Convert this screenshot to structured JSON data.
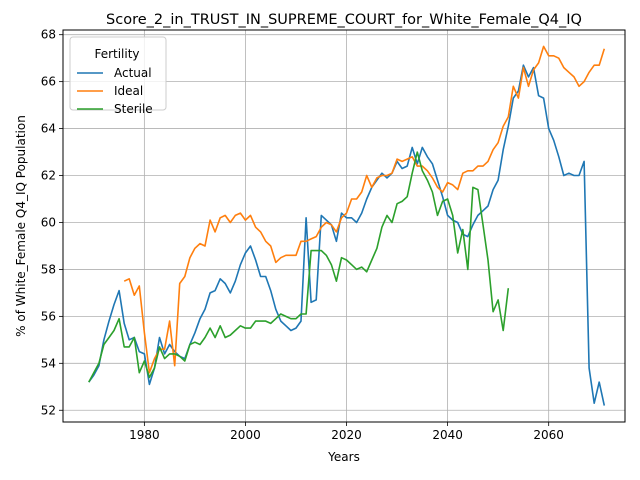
{
  "chart_data": {
    "type": "line",
    "title": "Score_2_in_TRUST_IN_SUPREME_COURT_for_White_Female_Q4_IQ",
    "xlabel": "Years",
    "ylabel": "% of White_Female Q4_IQ Population",
    "xlim": [
      1963.9,
      2075.1
    ],
    "ylim": [
      51.5,
      68.2
    ],
    "xticks": [
      1980,
      2000,
      2020,
      2040,
      2060
    ],
    "yticks": [
      52,
      54,
      56,
      58,
      60,
      62,
      64,
      66,
      68
    ],
    "grid": true,
    "legend": {
      "title": "Fertility",
      "placement": "top-left"
    },
    "series": [
      {
        "name": "Actual",
        "color": "#1f77b4",
        "points": [
          [
            1969,
            53.2
          ],
          [
            1970,
            53.5
          ],
          [
            1971,
            53.9
          ],
          [
            1972,
            55.0
          ],
          [
            1973,
            55.8
          ],
          [
            1974,
            56.5
          ],
          [
            1975,
            57.1
          ],
          [
            1976,
            55.7
          ],
          [
            1977,
            55.0
          ],
          [
            1978,
            55.1
          ],
          [
            1979,
            54.5
          ],
          [
            1980,
            54.4
          ],
          [
            1981,
            53.1
          ],
          [
            1982,
            53.8
          ],
          [
            1983,
            55.1
          ],
          [
            1984,
            54.4
          ],
          [
            1985,
            54.8
          ],
          [
            1986,
            54.5
          ],
          [
            1987,
            54.3
          ],
          [
            1988,
            54.2
          ],
          [
            1989,
            54.8
          ],
          [
            1990,
            55.3
          ],
          [
            1991,
            55.9
          ],
          [
            1992,
            56.3
          ],
          [
            1993,
            57.0
          ],
          [
            1994,
            57.1
          ],
          [
            1995,
            57.6
          ],
          [
            1996,
            57.4
          ],
          [
            1997,
            57.0
          ],
          [
            1998,
            57.5
          ],
          [
            1999,
            58.2
          ],
          [
            2000,
            58.7
          ],
          [
            2001,
            59.0
          ],
          [
            2002,
            58.4
          ],
          [
            2003,
            57.7
          ],
          [
            2004,
            57.7
          ],
          [
            2005,
            57.1
          ],
          [
            2006,
            56.3
          ],
          [
            2007,
            55.8
          ],
          [
            2008,
            55.6
          ],
          [
            2009,
            55.4
          ],
          [
            2010,
            55.5
          ],
          [
            2011,
            55.8
          ],
          [
            2012,
            60.2
          ],
          [
            2013,
            56.6
          ],
          [
            2014,
            56.7
          ],
          [
            2015,
            60.3
          ],
          [
            2016,
            60.1
          ],
          [
            2017,
            59.9
          ],
          [
            2018,
            59.2
          ],
          [
            2019,
            60.4
          ],
          [
            2020,
            60.2
          ],
          [
            2021,
            60.2
          ],
          [
            2022,
            60.0
          ],
          [
            2023,
            60.4
          ],
          [
            2024,
            61.0
          ],
          [
            2025,
            61.5
          ],
          [
            2026,
            61.8
          ],
          [
            2027,
            62.1
          ],
          [
            2028,
            61.9
          ],
          [
            2029,
            62.1
          ],
          [
            2030,
            62.6
          ],
          [
            2031,
            62.3
          ],
          [
            2032,
            62.4
          ],
          [
            2033,
            63.2
          ],
          [
            2034,
            62.5
          ],
          [
            2035,
            63.2
          ],
          [
            2036,
            62.8
          ],
          [
            2037,
            62.5
          ],
          [
            2038,
            61.8
          ],
          [
            2039,
            61.1
          ],
          [
            2040,
            60.3
          ],
          [
            2041,
            60.1
          ],
          [
            2042,
            60.0
          ],
          [
            2043,
            59.5
          ],
          [
            2044,
            59.4
          ],
          [
            2045,
            59.9
          ],
          [
            2046,
            60.3
          ],
          [
            2047,
            60.5
          ],
          [
            2048,
            60.7
          ],
          [
            2049,
            61.4
          ],
          [
            2050,
            61.8
          ],
          [
            2051,
            63.1
          ],
          [
            2052,
            64.1
          ],
          [
            2053,
            65.3
          ],
          [
            2054,
            65.6
          ],
          [
            2055,
            66.7
          ],
          [
            2056,
            66.2
          ],
          [
            2057,
            66.6
          ],
          [
            2058,
            65.4
          ],
          [
            2059,
            65.3
          ],
          [
            2060,
            64.0
          ],
          [
            2061,
            63.5
          ],
          [
            2062,
            62.8
          ],
          [
            2063,
            62.0
          ],
          [
            2064,
            62.1
          ],
          [
            2065,
            62.0
          ],
          [
            2066,
            62.0
          ],
          [
            2067,
            62.6
          ],
          [
            2068,
            53.8
          ],
          [
            2069,
            52.3
          ],
          [
            2070,
            53.2
          ],
          [
            2071,
            52.2
          ]
        ]
      },
      {
        "name": "Ideal",
        "color": "#ff7f0e",
        "points": [
          [
            1976,
            57.5
          ],
          [
            1977,
            57.6
          ],
          [
            1978,
            56.9
          ],
          [
            1979,
            57.3
          ],
          [
            1980,
            55.3
          ],
          [
            1981,
            53.6
          ],
          [
            1982,
            54.2
          ],
          [
            1983,
            54.6
          ],
          [
            1984,
            54.6
          ],
          [
            1985,
            55.8
          ],
          [
            1986,
            53.9
          ],
          [
            1987,
            57.4
          ],
          [
            1988,
            57.7
          ],
          [
            1989,
            58.5
          ],
          [
            1990,
            58.9
          ],
          [
            1991,
            59.1
          ],
          [
            1992,
            59.0
          ],
          [
            1993,
            60.1
          ],
          [
            1994,
            59.6
          ],
          [
            1995,
            60.2
          ],
          [
            1996,
            60.3
          ],
          [
            1997,
            60.0
          ],
          [
            1998,
            60.3
          ],
          [
            1999,
            60.4
          ],
          [
            2000,
            60.1
          ],
          [
            2001,
            60.3
          ],
          [
            2002,
            59.8
          ],
          [
            2003,
            59.6
          ],
          [
            2004,
            59.2
          ],
          [
            2005,
            59.0
          ],
          [
            2006,
            58.3
          ],
          [
            2007,
            58.5
          ],
          [
            2008,
            58.6
          ],
          [
            2009,
            58.6
          ],
          [
            2010,
            58.6
          ],
          [
            2011,
            59.2
          ],
          [
            2012,
            59.2
          ],
          [
            2013,
            59.3
          ],
          [
            2014,
            59.4
          ],
          [
            2015,
            59.8
          ],
          [
            2016,
            60.0
          ],
          [
            2017,
            59.9
          ],
          [
            2018,
            59.6
          ],
          [
            2019,
            60.2
          ],
          [
            2020,
            60.4
          ],
          [
            2021,
            61.0
          ],
          [
            2022,
            61.0
          ],
          [
            2023,
            61.3
          ],
          [
            2024,
            62.0
          ],
          [
            2025,
            61.5
          ],
          [
            2026,
            61.9
          ],
          [
            2027,
            62.0
          ],
          [
            2028,
            62.0
          ],
          [
            2029,
            62.1
          ],
          [
            2030,
            62.7
          ],
          [
            2031,
            62.6
          ],
          [
            2032,
            62.7
          ],
          [
            2033,
            62.8
          ],
          [
            2034,
            62.4
          ],
          [
            2035,
            62.4
          ],
          [
            2036,
            62.2
          ],
          [
            2037,
            61.9
          ],
          [
            2038,
            61.5
          ],
          [
            2039,
            61.3
          ],
          [
            2040,
            61.7
          ],
          [
            2041,
            61.6
          ],
          [
            2042,
            61.4
          ],
          [
            2043,
            62.1
          ],
          [
            2044,
            62.2
          ],
          [
            2045,
            62.2
          ],
          [
            2046,
            62.4
          ],
          [
            2047,
            62.4
          ],
          [
            2048,
            62.6
          ],
          [
            2049,
            63.1
          ],
          [
            2050,
            63.4
          ],
          [
            2051,
            64.1
          ],
          [
            2052,
            64.5
          ],
          [
            2053,
            65.8
          ],
          [
            2054,
            65.3
          ],
          [
            2055,
            66.6
          ],
          [
            2056,
            65.8
          ],
          [
            2057,
            66.5
          ],
          [
            2058,
            66.8
          ],
          [
            2059,
            67.5
          ],
          [
            2060,
            67.1
          ],
          [
            2061,
            67.1
          ],
          [
            2062,
            67.0
          ],
          [
            2063,
            66.6
          ],
          [
            2064,
            66.4
          ],
          [
            2065,
            66.2
          ],
          [
            2066,
            65.8
          ],
          [
            2067,
            66.0
          ],
          [
            2068,
            66.4
          ],
          [
            2069,
            66.7
          ],
          [
            2070,
            66.7
          ],
          [
            2071,
            67.4
          ]
        ]
      },
      {
        "name": "Sterile",
        "color": "#2ca02c",
        "points": [
          [
            1969,
            53.2
          ],
          [
            1970,
            53.6
          ],
          [
            1971,
            54.0
          ],
          [
            1972,
            54.8
          ],
          [
            1973,
            55.1
          ],
          [
            1974,
            55.4
          ],
          [
            1975,
            55.9
          ],
          [
            1976,
            54.7
          ],
          [
            1977,
            54.7
          ],
          [
            1978,
            55.1
          ],
          [
            1979,
            53.6
          ],
          [
            1980,
            54.1
          ],
          [
            1981,
            53.4
          ],
          [
            1982,
            53.8
          ],
          [
            1983,
            54.7
          ],
          [
            1984,
            54.2
          ],
          [
            1985,
            54.4
          ],
          [
            1986,
            54.4
          ],
          [
            1987,
            54.3
          ],
          [
            1988,
            54.1
          ],
          [
            1989,
            54.8
          ],
          [
            1990,
            54.9
          ],
          [
            1991,
            54.8
          ],
          [
            1992,
            55.1
          ],
          [
            1993,
            55.5
          ],
          [
            1994,
            55.1
          ],
          [
            1995,
            55.6
          ],
          [
            1996,
            55.1
          ],
          [
            1997,
            55.2
          ],
          [
            1998,
            55.4
          ],
          [
            1999,
            55.6
          ],
          [
            2000,
            55.5
          ],
          [
            2001,
            55.5
          ],
          [
            2002,
            55.8
          ],
          [
            2003,
            55.8
          ],
          [
            2004,
            55.8
          ],
          [
            2005,
            55.7
          ],
          [
            2006,
            55.9
          ],
          [
            2007,
            56.1
          ],
          [
            2008,
            56.0
          ],
          [
            2009,
            55.9
          ],
          [
            2010,
            55.9
          ],
          [
            2011,
            56.1
          ],
          [
            2012,
            56.1
          ],
          [
            2013,
            58.8
          ],
          [
            2014,
            58.8
          ],
          [
            2015,
            58.8
          ],
          [
            2016,
            58.6
          ],
          [
            2017,
            58.2
          ],
          [
            2018,
            57.5
          ],
          [
            2019,
            58.5
          ],
          [
            2020,
            58.4
          ],
          [
            2021,
            58.2
          ],
          [
            2022,
            58.0
          ],
          [
            2023,
            58.1
          ],
          [
            2024,
            57.9
          ],
          [
            2025,
            58.4
          ],
          [
            2026,
            58.9
          ],
          [
            2027,
            59.8
          ],
          [
            2028,
            60.3
          ],
          [
            2029,
            60.0
          ],
          [
            2030,
            60.8
          ],
          [
            2031,
            60.9
          ],
          [
            2032,
            61.1
          ],
          [
            2033,
            62.1
          ],
          [
            2034,
            63.0
          ],
          [
            2035,
            62.2
          ],
          [
            2036,
            61.8
          ],
          [
            2037,
            61.3
          ],
          [
            2038,
            60.3
          ],
          [
            2039,
            60.9
          ],
          [
            2040,
            61.0
          ],
          [
            2041,
            60.3
          ],
          [
            2042,
            58.7
          ],
          [
            2043,
            59.7
          ],
          [
            2044,
            58.0
          ],
          [
            2045,
            61.5
          ],
          [
            2046,
            61.4
          ],
          [
            2047,
            59.9
          ],
          [
            2048,
            58.4
          ],
          [
            2049,
            56.2
          ],
          [
            2050,
            56.7
          ],
          [
            2051,
            55.4
          ],
          [
            2052,
            57.2
          ]
        ]
      }
    ]
  }
}
